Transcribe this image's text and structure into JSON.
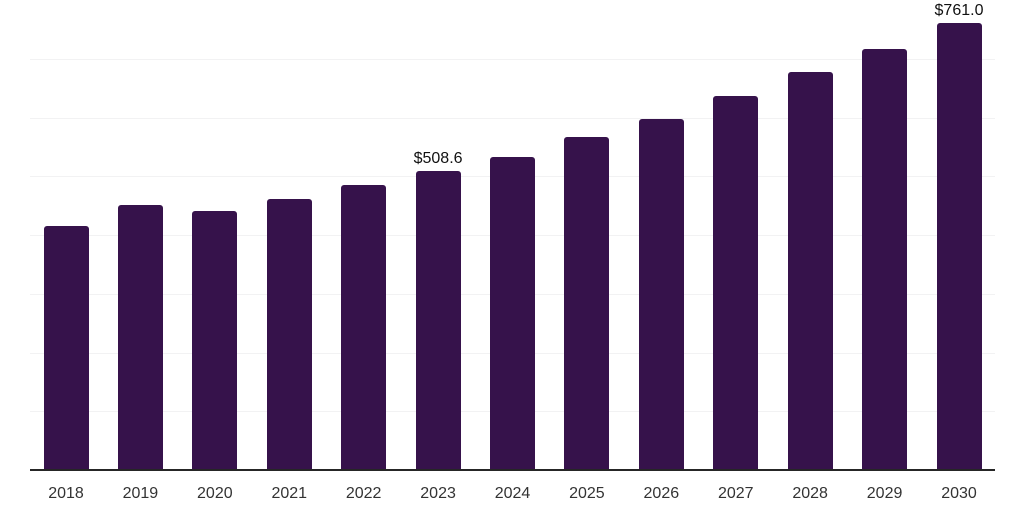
{
  "chart_data": {
    "type": "bar",
    "title": "",
    "xlabel": "",
    "ylabel": "",
    "categories": [
      "2018",
      "2019",
      "2020",
      "2021",
      "2022",
      "2023",
      "2024",
      "2025",
      "2026",
      "2027",
      "2028",
      "2029",
      "2030"
    ],
    "values": [
      416,
      451,
      441,
      462,
      485,
      508.6,
      533,
      567,
      598,
      636,
      678,
      717,
      761
    ],
    "data_labels": [
      {
        "category": "2023",
        "text": "$508.6"
      },
      {
        "category": "2030",
        "text": "$761.0"
      }
    ],
    "ylim": [
      0,
      800
    ],
    "grid": "horizontal",
    "gridline_step": 100,
    "legend_position": "none",
    "bar_color": "#36124B",
    "axis_color": "#262626",
    "gridline_color": "#f2f2f3",
    "tick_label_color": "#333333",
    "data_label_color": "#111111",
    "background_color": "#ffffff"
  }
}
